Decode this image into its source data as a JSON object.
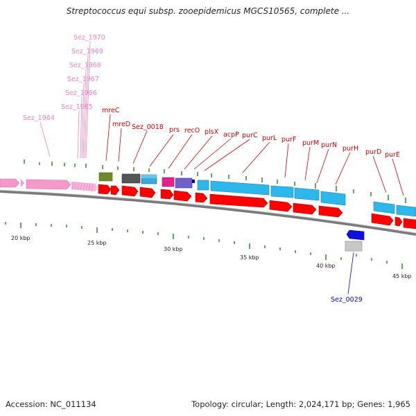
{
  "title": "Streptococcus equi subsp. zooepidemicus MGCS10565, complete ...",
  "footer": {
    "accession": "Accession: NC_011134",
    "summary": "Topology: circular; Length: 2,024,171 bp; Genes: 1,965"
  },
  "colors": {
    "backbone": "#888888",
    "forward_arrow": "#ff0000",
    "cds_cyan": "#2db8ec",
    "pink_genes": "#f59ac8",
    "label_red": "#cc0000",
    "label_pink": "#f080c0",
    "label_blue": "#0000cc",
    "minor_tick": "#2a8a2a"
  },
  "scale": {
    "ticks": [
      {
        "label": "20 kbp"
      },
      {
        "label": "25 kbp"
      },
      {
        "label": "30 kbp"
      },
      {
        "label": "35 kbp"
      },
      {
        "label": "40 kbp"
      },
      {
        "label": "45 kbp"
      }
    ]
  },
  "pink_labels": [
    "Sez_1970",
    "Sez_1969",
    "Sez_1968",
    "Sez_1967",
    "Sez_1966",
    "Sez_1965",
    "Sez_1964"
  ],
  "red_labels": [
    "mreC",
    "mreD",
    "Sez_0018",
    "prs",
    "recO",
    "plsX",
    "acpP",
    "purC",
    "purL",
    "purF",
    "purM",
    "purN",
    "purH",
    "purD",
    "purE"
  ],
  "blue_labels": [
    "Sez_0029"
  ]
}
